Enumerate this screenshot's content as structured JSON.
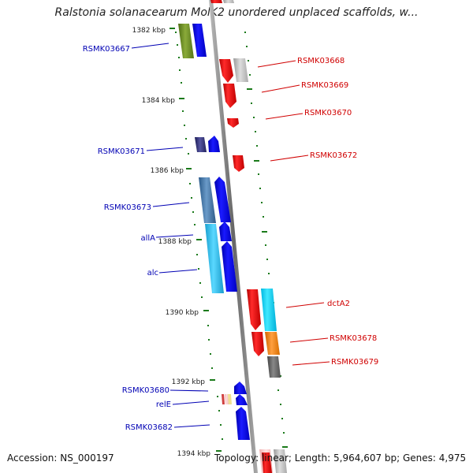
{
  "title": "Ralstonia solanacearum MolK2 unordered unplaced scaffolds, w...",
  "footer": {
    "accession": "Accession: NS_000197",
    "summary": "Topology: linear; Length: 5,964,607 bp; Genes: 4,975"
  },
  "colors": {
    "left_label": "#0000b4",
    "right_label": "#d00000",
    "tick": "#1a7a1a",
    "backbone": "#888888"
  },
  "scale_labels": [
    "1382 kbp",
    "1384 kbp",
    "1386 kbp",
    "1388 kbp",
    "1390 kbp",
    "1392 kbp",
    "1394 kbp"
  ],
  "left_labels": [
    "RSMK03667",
    "RSMK03671",
    "RSMK03673",
    "allA",
    "alc",
    "RSMK03680",
    "relE",
    "RSMK03682"
  ],
  "right_labels": [
    "RSMK03668",
    "RSMK03669",
    "RSMK03670",
    "RSMK03672",
    "dctA2",
    "RSMK03678",
    "RSMK03679"
  ]
}
